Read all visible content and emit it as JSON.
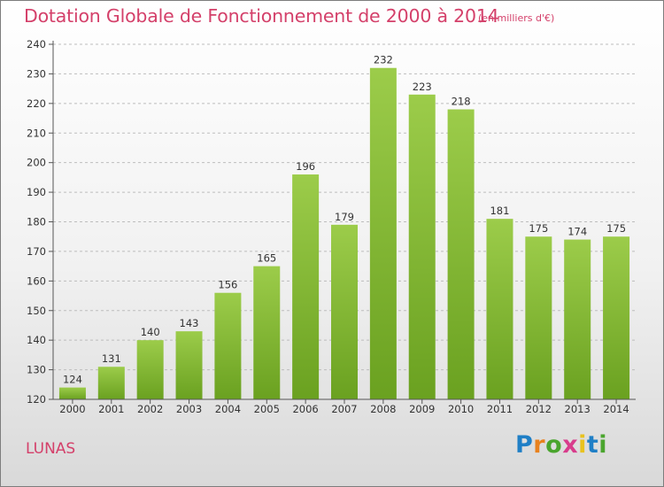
{
  "title": "Dotation Globale de Fonctionnement de 2000 à 2014",
  "subtitle": "(en milliers d'€)",
  "commune": "LUNAS",
  "logo": {
    "text": "Proxiti",
    "letters": [
      {
        "ch": "P",
        "color": "#1f7fc6"
      },
      {
        "ch": "r",
        "color": "#e8821e"
      },
      {
        "ch": "o",
        "color": "#4aa52e"
      },
      {
        "ch": "x",
        "color": "#d83c8c"
      },
      {
        "ch": "i",
        "color": "#e8c21e"
      },
      {
        "ch": "t",
        "color": "#1f7fc6"
      },
      {
        "ch": "i",
        "color": "#4aa52e"
      }
    ]
  },
  "colors": {
    "title": "#d4406a",
    "bar_top": "#9ccc4a",
    "bar_bottom": "#6aa120",
    "axis": "#555555",
    "grid": "#bdbdbd"
  },
  "chart_data": {
    "type": "bar",
    "categories": [
      "2000",
      "2001",
      "2002",
      "2003",
      "2004",
      "2005",
      "2006",
      "2007",
      "2008",
      "2009",
      "2010",
      "2011",
      "2012",
      "2013",
      "2014"
    ],
    "values": [
      124,
      131,
      140,
      143,
      156,
      165,
      196,
      179,
      232,
      223,
      218,
      181,
      175,
      174,
      175
    ],
    "ylim": [
      120,
      240
    ],
    "yticks": [
      120,
      130,
      140,
      150,
      160,
      170,
      180,
      190,
      200,
      210,
      220,
      230,
      240
    ],
    "grid": true,
    "grid_style": "dashed horizontal",
    "data_labels": true
  }
}
